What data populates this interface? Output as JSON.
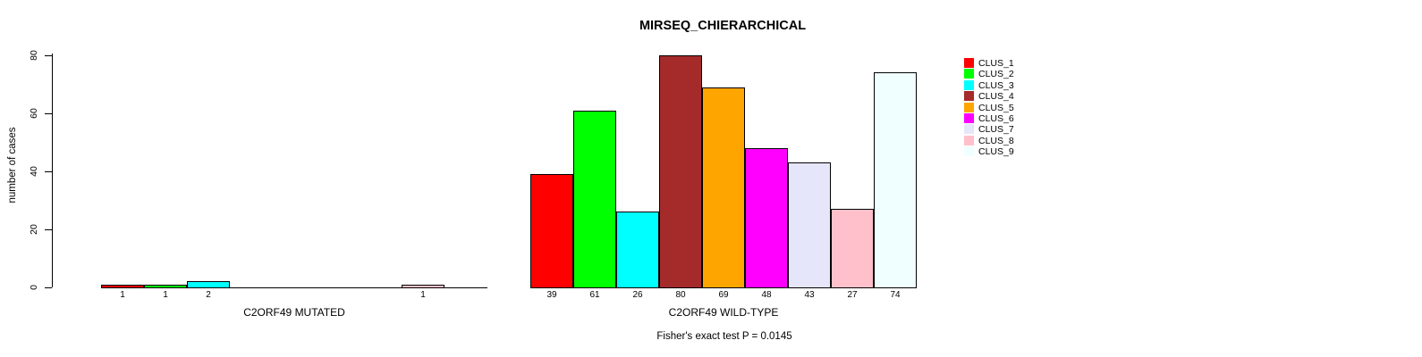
{
  "chart_data": {
    "type": "bar",
    "title": "MIRSEQ_CHIERARCHICAL",
    "ylabel": "number of cases",
    "xlabel": "",
    "ylim": [
      0,
      80
    ],
    "yticks": [
      0,
      20,
      40,
      60,
      80
    ],
    "grid": false,
    "legend_position": "right",
    "legend": [
      {
        "name": "CLUS_1",
        "color": "#FF0000"
      },
      {
        "name": "CLUS_2",
        "color": "#00FF00"
      },
      {
        "name": "CLUS_3",
        "color": "#00FFFF"
      },
      {
        "name": "CLUS_4",
        "color": "#A52A2A"
      },
      {
        "name": "CLUS_5",
        "color": "#FFA500"
      },
      {
        "name": "CLUS_6",
        "color": "#FF00FF"
      },
      {
        "name": "CLUS_7",
        "color": "#E6E6FA"
      },
      {
        "name": "CLUS_8",
        "color": "#FFC0CB"
      },
      {
        "name": "CLUS_9",
        "color": "#F0FFFF"
      }
    ],
    "groups": [
      {
        "label": "C2ORF49 MUTATED",
        "values": [
          1,
          1,
          2,
          0,
          0,
          0,
          0,
          1,
          0
        ]
      },
      {
        "label": "C2ORF49 WILD-TYPE",
        "values": [
          39,
          61,
          26,
          80,
          69,
          48,
          43,
          27,
          74
        ]
      }
    ],
    "footer": "Fisher's exact test P = 0.0145"
  }
}
